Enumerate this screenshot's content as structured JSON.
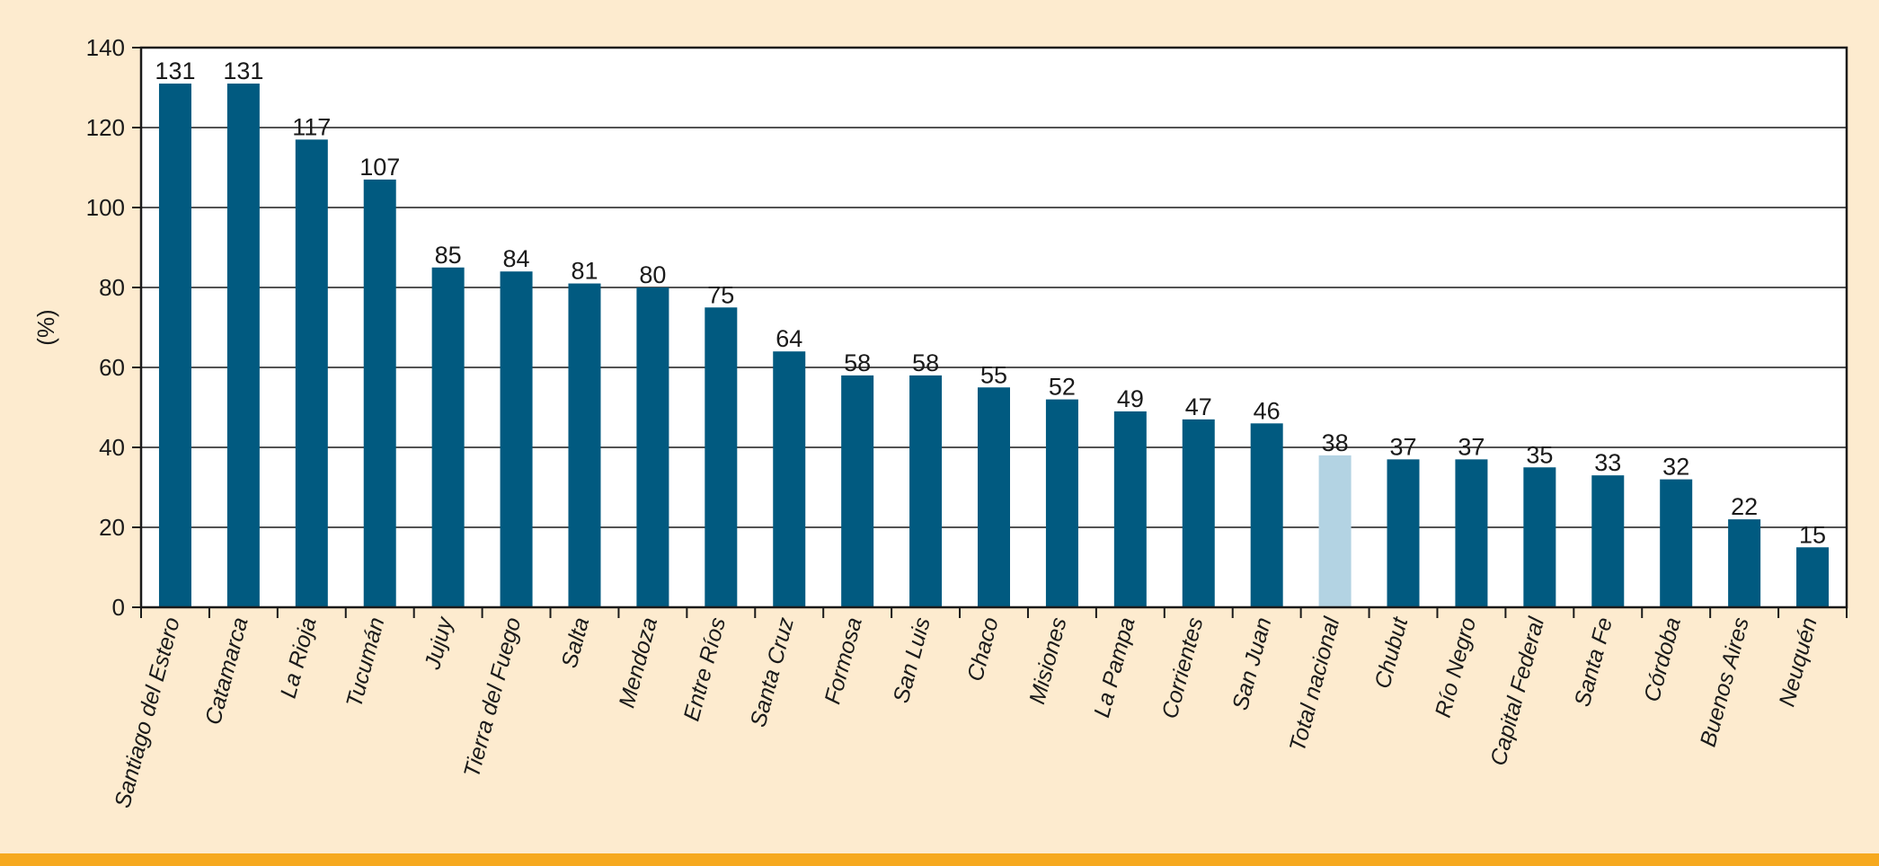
{
  "chart_data": {
    "type": "bar",
    "ylabel": "(%)",
    "ylim": [
      0,
      140
    ],
    "yticks": [
      0,
      20,
      40,
      60,
      80,
      100,
      120,
      140
    ],
    "grid": true,
    "bar_color": "#015A80",
    "highlight_color": "#B3D3E3",
    "highlight_category": "Total nacional",
    "categories": [
      "Santiago del Estero",
      "Catamarca",
      "La Rioja",
      "Tucumán",
      "Jujuy",
      "Tierra del Fuego",
      "Salta",
      "Mendoza",
      "Entre Ríos",
      "Santa Cruz",
      "Formosa",
      "San Luis",
      "Chaco",
      "Misiones",
      "La Pampa",
      "Corrientes",
      "San Juan",
      "Total nacional",
      "Chubut",
      "Río Negro",
      "Capital Federal",
      "Santa Fe",
      "Córdoba",
      "Buenos Aires",
      "Neuquén"
    ],
    "values": [
      131,
      131,
      117,
      107,
      85,
      84,
      81,
      80,
      75,
      64,
      58,
      58,
      55,
      52,
      49,
      47,
      46,
      38,
      37,
      37,
      35,
      33,
      32,
      22,
      15
    ]
  },
  "colors": {
    "background": "#FDEBCF",
    "bottom_band": "#F6A91F",
    "plot_background": "#FFFFFF"
  }
}
